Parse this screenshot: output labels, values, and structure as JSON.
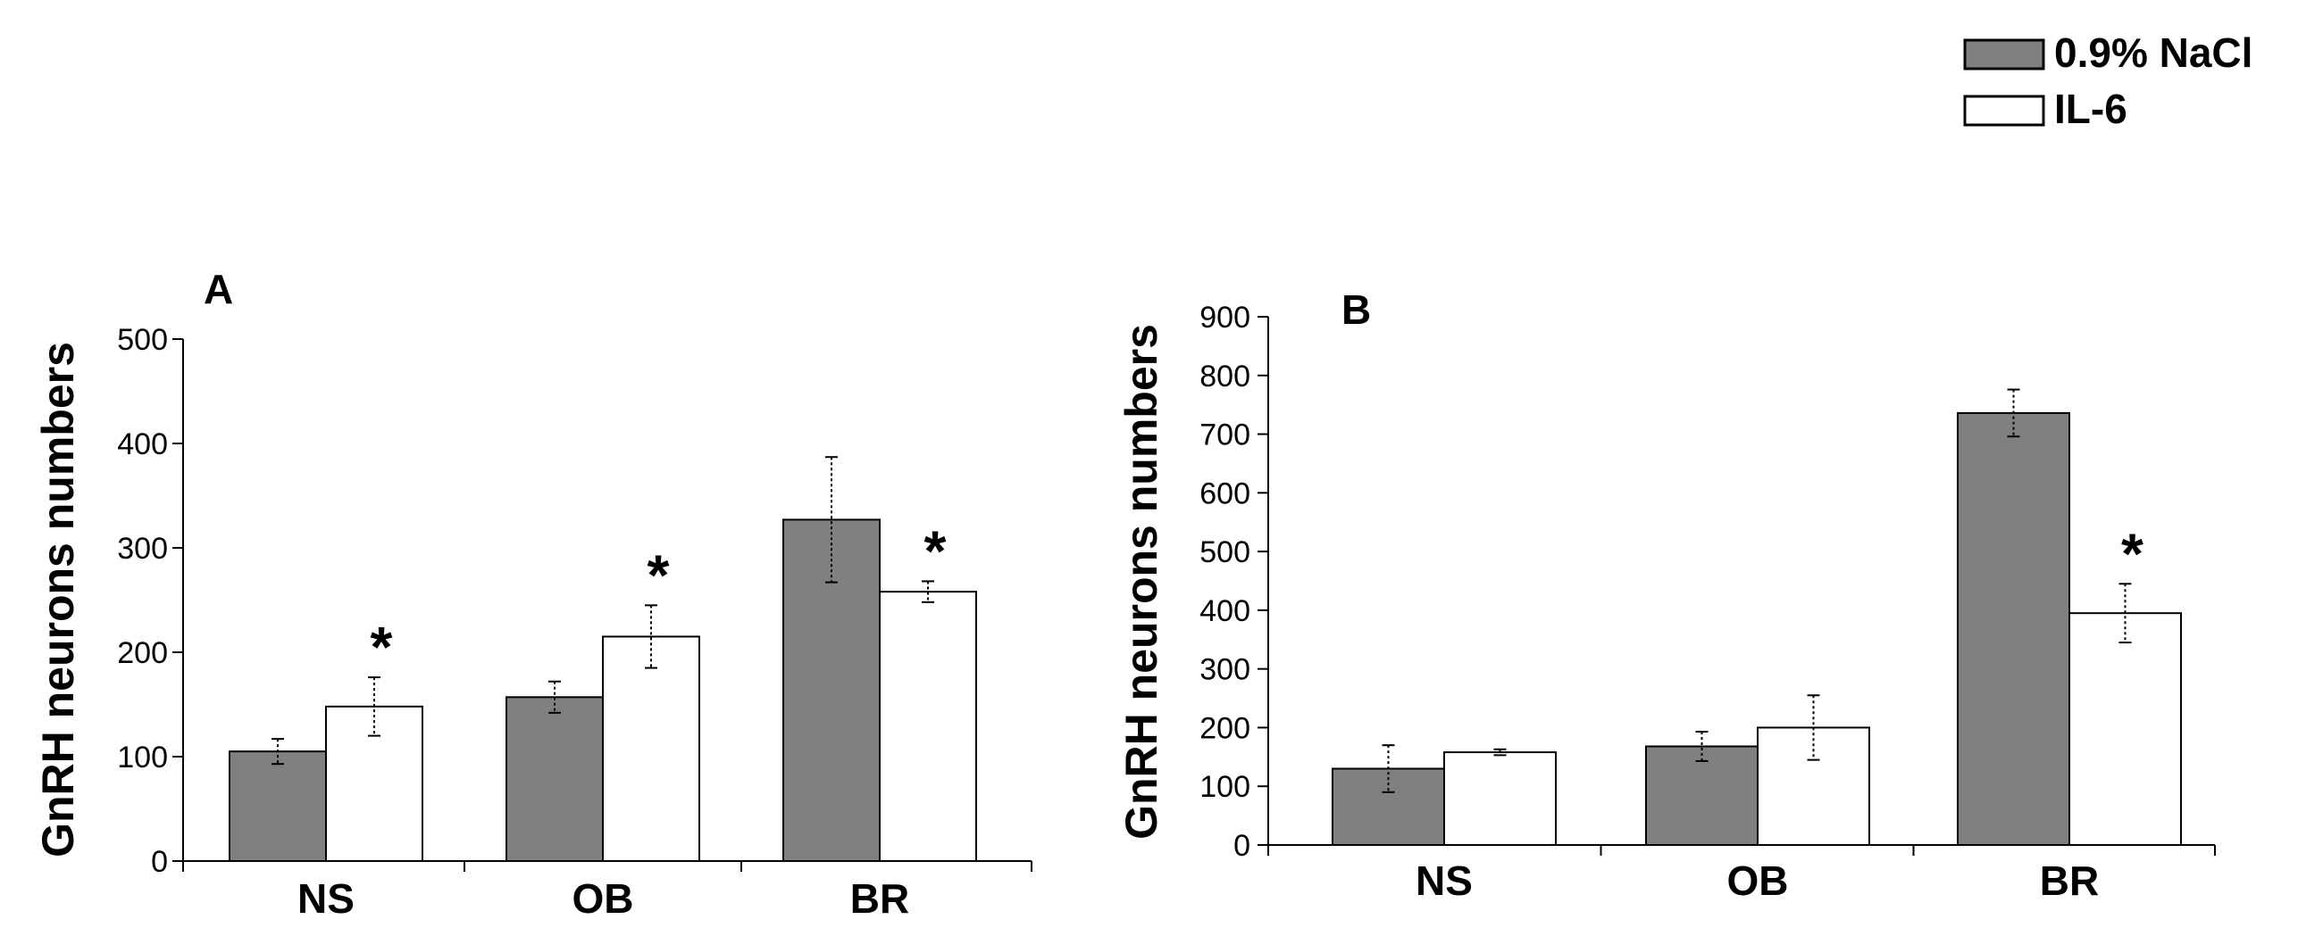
{
  "legend": {
    "entries": [
      {
        "label": "0.9% NaCl",
        "color": "#808080"
      },
      {
        "label": "IL-6",
        "color": "#ffffff"
      }
    ]
  },
  "chart_data": [
    {
      "type": "bar",
      "panel_label": "A",
      "ylabel": "GnRH neurons numbers",
      "xlabel": "",
      "categories": [
        "NS",
        "OB",
        "BR"
      ],
      "ylim": [
        0,
        500
      ],
      "yticks": [
        0,
        100,
        200,
        300,
        400,
        500
      ],
      "series": [
        {
          "name": "0.9% NaCl",
          "color": "#808080",
          "values": [
            105,
            157,
            327
          ],
          "errors": [
            12,
            15,
            60
          ]
        },
        {
          "name": "IL-6",
          "color": "#ffffff",
          "values": [
            148,
            215,
            258
          ],
          "errors": [
            28,
            30,
            10
          ]
        }
      ],
      "annotations": [
        {
          "category": "NS",
          "series": "IL-6",
          "text": "*"
        },
        {
          "category": "OB",
          "series": "IL-6",
          "text": "*"
        },
        {
          "category": "BR",
          "series": "IL-6",
          "text": "*"
        }
      ]
    },
    {
      "type": "bar",
      "panel_label": "B",
      "ylabel": "GnRH neurons numbers",
      "xlabel": "",
      "categories": [
        "NS",
        "OB",
        "BR"
      ],
      "ylim": [
        0,
        900
      ],
      "yticks": [
        0,
        100,
        200,
        300,
        400,
        500,
        600,
        700,
        800,
        900
      ],
      "series": [
        {
          "name": "0.9% NaCl",
          "color": "#808080",
          "values": [
            130,
            168,
            736
          ],
          "errors": [
            40,
            25,
            40
          ]
        },
        {
          "name": "IL-6",
          "color": "#ffffff",
          "values": [
            158,
            200,
            395
          ],
          "errors": [
            5,
            55,
            50
          ]
        }
      ],
      "annotations": [
        {
          "category": "BR",
          "series": "IL-6",
          "text": "*"
        }
      ]
    }
  ]
}
